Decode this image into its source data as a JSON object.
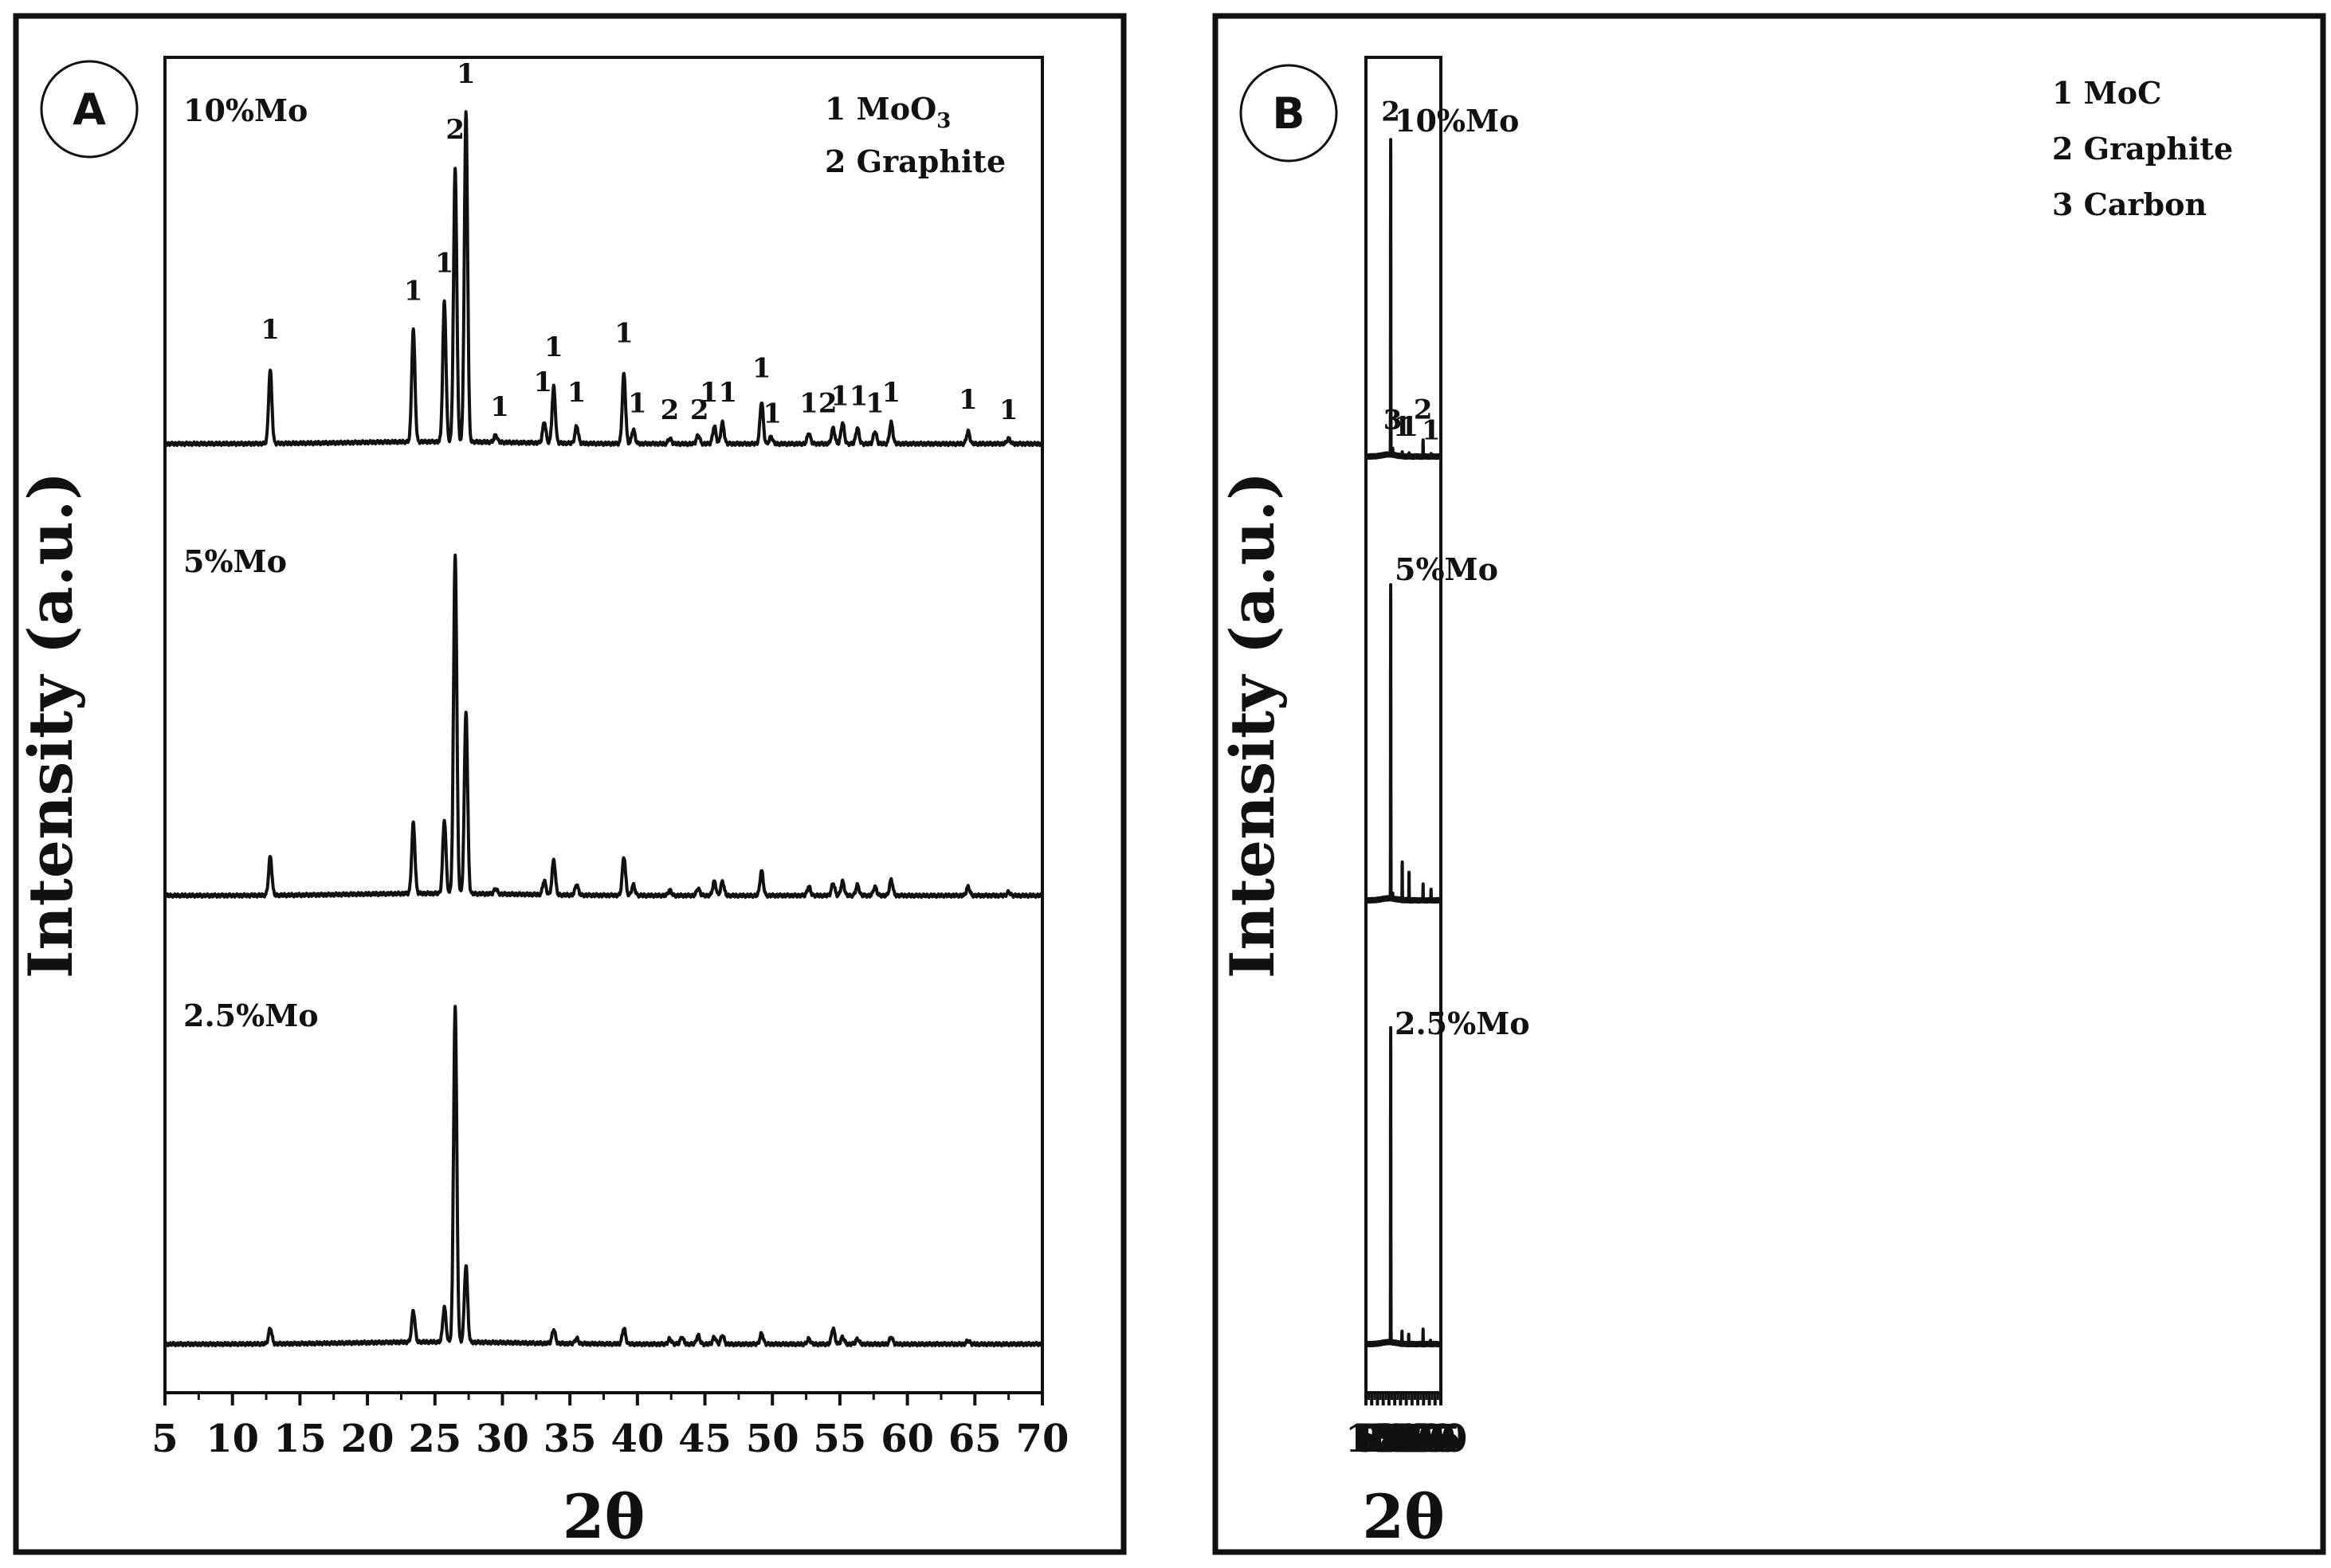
{
  "chart_data": [
    {
      "type": "line",
      "panel": "A",
      "xlabel": "2θ",
      "ylabel": "Intensity (a.u.)",
      "xlim": [
        5,
        70
      ],
      "xticks": [
        "5",
        "10",
        "15",
        "20",
        "25",
        "30",
        "35",
        "40",
        "45",
        "50",
        "55",
        "60",
        "65",
        "70"
      ],
      "legend": {
        "placement": "top-right",
        "items": [
          {
            "num": "1",
            "name": "MoO",
            "sub": "3"
          },
          {
            "num": "2",
            "name": "Graphite",
            "sub": ""
          }
        ]
      },
      "series": [
        {
          "name": "10%Mo",
          "peaks": [
            {
              "x": 12.8,
              "h": 0.21
            },
            {
              "x": 23.4,
              "h": 0.32
            },
            {
              "x": 25.7,
              "h": 0.4
            },
            {
              "x": 26.5,
              "h": 0.78
            },
            {
              "x": 27.3,
              "h": 0.94
            },
            {
              "x": 29.5,
              "h": 0.02
            },
            {
              "x": 33.1,
              "h": 0.06
            },
            {
              "x": 33.8,
              "h": 0.16
            },
            {
              "x": 35.5,
              "h": 0.05
            },
            {
              "x": 39.0,
              "h": 0.2
            },
            {
              "x": 39.7,
              "h": 0.04
            },
            {
              "x": 42.4,
              "h": 0.015
            },
            {
              "x": 44.5,
              "h": 0.025
            },
            {
              "x": 45.7,
              "h": 0.05
            },
            {
              "x": 46.3,
              "h": 0.06
            },
            {
              "x": 49.2,
              "h": 0.12
            },
            {
              "x": 49.9,
              "h": 0.02
            },
            {
              "x": 52.7,
              "h": 0.03
            },
            {
              "x": 54.5,
              "h": 0.045
            },
            {
              "x": 55.2,
              "h": 0.06
            },
            {
              "x": 56.3,
              "h": 0.045
            },
            {
              "x": 57.6,
              "h": 0.035
            },
            {
              "x": 58.8,
              "h": 0.06
            },
            {
              "x": 64.5,
              "h": 0.035
            },
            {
              "x": 67.5,
              "h": 0.015
            }
          ],
          "annotations": [
            {
              "x": 12.8,
              "y": 0.3,
              "text": "1"
            },
            {
              "x": 23.4,
              "y": 0.41,
              "text": "1"
            },
            {
              "x": 25.7,
              "y": 0.49,
              "text": "1"
            },
            {
              "x": 26.5,
              "y": 0.87,
              "text": "2"
            },
            {
              "x": 27.3,
              "y": 1.03,
              "text": "1"
            },
            {
              "x": 29.8,
              "y": 0.08,
              "text": "1"
            },
            {
              "x": 33.0,
              "y": 0.15,
              "text": "1"
            },
            {
              "x": 33.8,
              "y": 0.25,
              "text": "1"
            },
            {
              "x": 35.5,
              "y": 0.12,
              "text": "1"
            },
            {
              "x": 39.0,
              "y": 0.29,
              "text": "1"
            },
            {
              "x": 40.0,
              "y": 0.09,
              "text": "1"
            },
            {
              "x": 42.4,
              "y": 0.07,
              "text": "2"
            },
            {
              "x": 44.6,
              "y": 0.07,
              "text": "2"
            },
            {
              "x": 46.0,
              "y": 0.12,
              "text": "11"
            },
            {
              "x": 49.2,
              "y": 0.19,
              "text": "1"
            },
            {
              "x": 50.0,
              "y": 0.06,
              "text": "1"
            },
            {
              "x": 53.4,
              "y": 0.09,
              "text": "12"
            },
            {
              "x": 55.7,
              "y": 0.11,
              "text": "11"
            },
            {
              "x": 57.6,
              "y": 0.09,
              "text": "1"
            },
            {
              "x": 58.8,
              "y": 0.12,
              "text": "1"
            },
            {
              "x": 64.5,
              "y": 0.1,
              "text": "1"
            },
            {
              "x": 67.5,
              "y": 0.07,
              "text": "1"
            }
          ]
        },
        {
          "name": "5%Mo",
          "peaks": [
            {
              "x": 12.8,
              "h": 0.11
            },
            {
              "x": 23.4,
              "h": 0.2
            },
            {
              "x": 25.7,
              "h": 0.21
            },
            {
              "x": 26.5,
              "h": 0.97
            },
            {
              "x": 27.3,
              "h": 0.52
            },
            {
              "x": 29.5,
              "h": 0.015
            },
            {
              "x": 33.1,
              "h": 0.04
            },
            {
              "x": 33.8,
              "h": 0.1
            },
            {
              "x": 35.5,
              "h": 0.03
            },
            {
              "x": 39.0,
              "h": 0.11
            },
            {
              "x": 39.7,
              "h": 0.03
            },
            {
              "x": 42.4,
              "h": 0.015
            },
            {
              "x": 44.5,
              "h": 0.02
            },
            {
              "x": 45.7,
              "h": 0.04
            },
            {
              "x": 46.3,
              "h": 0.04
            },
            {
              "x": 49.2,
              "h": 0.07
            },
            {
              "x": 52.7,
              "h": 0.025
            },
            {
              "x": 54.5,
              "h": 0.035
            },
            {
              "x": 55.2,
              "h": 0.04
            },
            {
              "x": 56.3,
              "h": 0.03
            },
            {
              "x": 57.6,
              "h": 0.025
            },
            {
              "x": 58.8,
              "h": 0.045
            },
            {
              "x": 64.5,
              "h": 0.025
            },
            {
              "x": 67.5,
              "h": 0.01
            }
          ]
        },
        {
          "name": "2.5%Mo",
          "peaks": [
            {
              "x": 12.8,
              "h": 0.045
            },
            {
              "x": 23.4,
              "h": 0.09
            },
            {
              "x": 25.7,
              "h": 0.1
            },
            {
              "x": 26.5,
              "h": 0.96
            },
            {
              "x": 27.3,
              "h": 0.22
            },
            {
              "x": 33.8,
              "h": 0.04
            },
            {
              "x": 35.5,
              "h": 0.015
            },
            {
              "x": 39.0,
              "h": 0.045
            },
            {
              "x": 42.4,
              "h": 0.015
            },
            {
              "x": 43.3,
              "h": 0.02
            },
            {
              "x": 44.5,
              "h": 0.025
            },
            {
              "x": 45.7,
              "h": 0.02
            },
            {
              "x": 46.3,
              "h": 0.025
            },
            {
              "x": 49.2,
              "h": 0.03
            },
            {
              "x": 52.7,
              "h": 0.015
            },
            {
              "x": 54.5,
              "h": 0.045
            },
            {
              "x": 55.2,
              "h": 0.02
            },
            {
              "x": 56.3,
              "h": 0.015
            },
            {
              "x": 58.8,
              "h": 0.02
            },
            {
              "x": 64.5,
              "h": 0.01
            }
          ]
        }
      ]
    },
    {
      "type": "line",
      "panel": "B",
      "xlabel": "2θ",
      "ylabel": "Intensity (a.u.)",
      "xlim": [
        5,
        70
      ],
      "xticks": [
        "5",
        "10",
        "15",
        "20",
        "25",
        "30",
        "35",
        "40",
        "45",
        "50",
        "55",
        "60",
        "65",
        "70"
      ],
      "legend": {
        "placement": "top-right",
        "items": [
          {
            "num": "1",
            "name": "MoC",
            "sub": ""
          },
          {
            "num": "2",
            "name": "Graphite",
            "sub": ""
          },
          {
            "num": "3",
            "name": "Carbon",
            "sub": ""
          }
        ]
      },
      "series": [
        {
          "name": "10%Mo",
          "peaks": [
            {
              "x": 26.5,
              "h": 0.92
            },
            {
              "x": 28.2,
              "h": 0.02
            },
            {
              "x": 36.5,
              "h": 0.008
            },
            {
              "x": 42.4,
              "h": 0.008
            },
            {
              "x": 54.6,
              "h": 0.05
            },
            {
              "x": 61.5,
              "h": 0.004
            }
          ],
          "annotations": [
            {
              "x": 26.5,
              "y": 0.98,
              "text": "2"
            },
            {
              "x": 28.2,
              "y": 0.08,
              "text": "3"
            },
            {
              "x": 36.5,
              "y": 0.06,
              "text": "1"
            },
            {
              "x": 42.4,
              "y": 0.06,
              "text": "1"
            },
            {
              "x": 54.6,
              "y": 0.11,
              "text": "2"
            },
            {
              "x": 61.5,
              "y": 0.05,
              "text": "1"
            }
          ]
        },
        {
          "name": "5%Mo",
          "peaks": [
            {
              "x": 26.5,
              "h": 0.92
            },
            {
              "x": 28.2,
              "h": 0.015
            },
            {
              "x": 36.5,
              "h": 0.11
            },
            {
              "x": 42.4,
              "h": 0.08
            },
            {
              "x": 54.6,
              "h": 0.045
            },
            {
              "x": 61.5,
              "h": 0.03
            }
          ]
        },
        {
          "name": "2.5%Mo",
          "peaks": [
            {
              "x": 26.5,
              "h": 0.92
            },
            {
              "x": 36.3,
              "h": 0.035
            },
            {
              "x": 42.1,
              "h": 0.025
            },
            {
              "x": 54.6,
              "h": 0.04
            },
            {
              "x": 61.0,
              "h": 0.01
            }
          ]
        }
      ]
    }
  ]
}
